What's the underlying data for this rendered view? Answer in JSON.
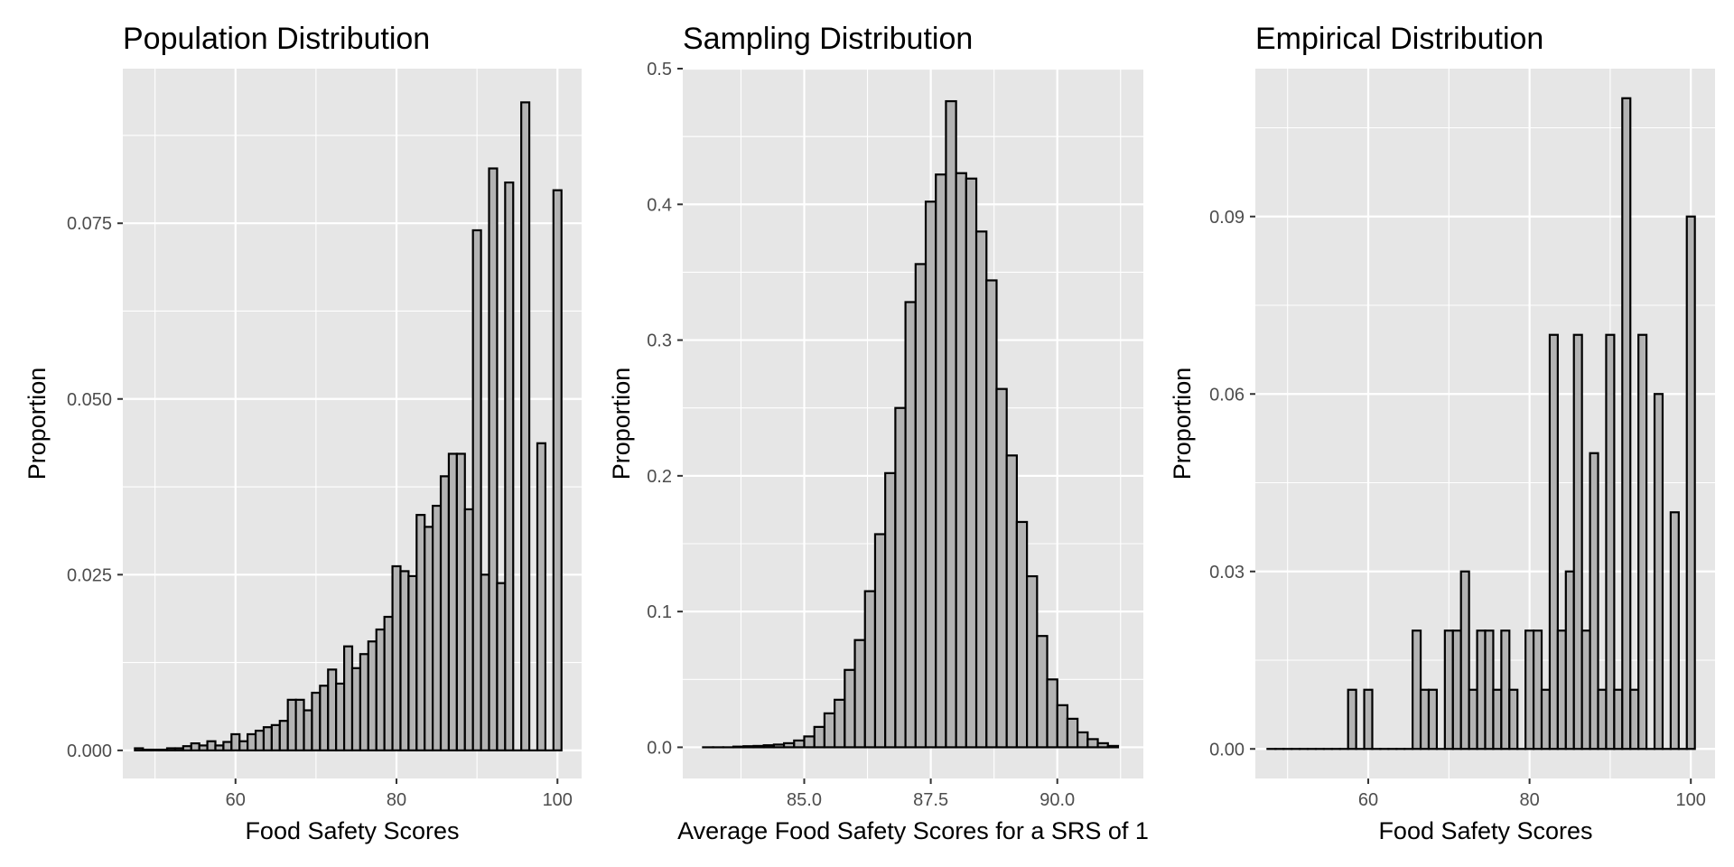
{
  "colors": {
    "panel_bg": "#e6e6e6",
    "grid": "#ffffff",
    "bar_fill": "#b3b3b3",
    "bar_outline": "#000000",
    "tick_text": "#4d4d4d"
  },
  "chart_data": [
    {
      "type": "bar",
      "title": "Population Distribution",
      "xlabel": "Food Safety Scores",
      "ylabel": "Proportion",
      "xlim": [
        46,
        103
      ],
      "ylim": [
        -0.004,
        0.097
      ],
      "bin_width": 1,
      "x_ticks": [
        60,
        80,
        100
      ],
      "y_ticks": [
        0.0,
        0.025,
        0.05,
        0.075
      ],
      "x_tick_labels": [
        "60",
        "80",
        "100"
      ],
      "y_tick_labels": [
        "0.000",
        "0.025",
        "0.050",
        "0.075"
      ],
      "grid": true,
      "x": [
        48,
        49,
        50,
        51,
        52,
        53,
        54,
        55,
        56,
        57,
        58,
        59,
        60,
        61,
        62,
        63,
        64,
        65,
        66,
        67,
        68,
        69,
        70,
        71,
        72,
        73,
        74,
        75,
        76,
        77,
        78,
        79,
        80,
        81,
        82,
        83,
        84,
        85,
        86,
        87,
        88,
        89,
        90,
        91,
        92,
        93,
        94,
        95,
        96,
        97,
        98,
        99,
        100
      ],
      "values": [
        0.0003,
        0.0001,
        0.0001,
        0.0001,
        0.0003,
        0.0003,
        0.0006,
        0.001,
        0.0007,
        0.0013,
        0.0007,
        0.0012,
        0.0023,
        0.0013,
        0.0023,
        0.0028,
        0.0033,
        0.0036,
        0.0042,
        0.0072,
        0.0072,
        0.0057,
        0.0082,
        0.0092,
        0.0115,
        0.0095,
        0.0148,
        0.0117,
        0.0137,
        0.0155,
        0.0172,
        0.019,
        0.0262,
        0.0255,
        0.0248,
        0.0335,
        0.0318,
        0.0348,
        0.039,
        0.0422,
        0.0422,
        0.0343,
        0.074,
        0.025,
        0.0828,
        0.0238,
        0.0808,
        0,
        0.0922,
        0,
        0.0437,
        0,
        0.0797
      ]
    },
    {
      "type": "bar",
      "title": "Sampling Distribution",
      "xlabel": "Average Food Safety Scores for a SRS of 1",
      "ylabel": "Proportion",
      "xlim": [
        82.6,
        91.7
      ],
      "ylim": [
        -0.023,
        0.5
      ],
      "bin_width": 0.2,
      "x_ticks": [
        85.0,
        87.5,
        90.0
      ],
      "y_ticks": [
        0.0,
        0.1,
        0.2,
        0.3,
        0.4,
        0.5
      ],
      "x_tick_labels": [
        "85.0",
        "87.5",
        "90.0"
      ],
      "y_tick_labels": [
        "0.0",
        "0.1",
        "0.2",
        "0.3",
        "0.4",
        "0.5"
      ],
      "grid": true,
      "x": [
        83.1,
        83.3,
        83.5,
        83.7,
        83.9,
        84.1,
        84.3,
        84.5,
        84.7,
        84.9,
        85.1,
        85.3,
        85.5,
        85.7,
        85.9,
        86.1,
        86.3,
        86.5,
        86.7,
        86.9,
        87.1,
        87.3,
        87.5,
        87.7,
        87.9,
        88.1,
        88.3,
        88.5,
        88.7,
        88.9,
        89.1,
        89.3,
        89.5,
        89.7,
        89.9,
        90.1,
        90.3,
        90.5,
        90.7,
        90.9,
        91.1
      ],
      "values": [
        0,
        0,
        0,
        0.0005,
        0.0008,
        0.001,
        0.0015,
        0.002,
        0.003,
        0.005,
        0.008,
        0.015,
        0.025,
        0.035,
        0.057,
        0.079,
        0.115,
        0.157,
        0.202,
        0.25,
        0.328,
        0.356,
        0.402,
        0.422,
        0.476,
        0.423,
        0.419,
        0.38,
        0.344,
        0.264,
        0.215,
        0.166,
        0.126,
        0.082,
        0.05,
        0.031,
        0.021,
        0.011,
        0.006,
        0.003,
        0.001
      ]
    },
    {
      "type": "bar",
      "title": "Empirical Distribution",
      "xlabel": "Food Safety Scores",
      "ylabel": "Proportion",
      "xlim": [
        46,
        103
      ],
      "ylim": [
        -0.005,
        0.115
      ],
      "bin_width": 1,
      "x_ticks": [
        60,
        80,
        100
      ],
      "y_ticks": [
        0.0,
        0.03,
        0.06,
        0.09
      ],
      "x_tick_labels": [
        "60",
        "80",
        "100"
      ],
      "y_tick_labels": [
        "0.00",
        "0.03",
        "0.06",
        "0.09"
      ],
      "grid": true,
      "x": [
        48,
        49,
        50,
        51,
        52,
        53,
        54,
        55,
        56,
        57,
        58,
        59,
        60,
        61,
        62,
        63,
        64,
        65,
        66,
        67,
        68,
        69,
        70,
        71,
        72,
        73,
        74,
        75,
        76,
        77,
        78,
        79,
        80,
        81,
        82,
        83,
        84,
        85,
        86,
        87,
        88,
        89,
        90,
        91,
        92,
        93,
        94,
        95,
        96,
        97,
        98,
        99,
        100
      ],
      "values": [
        0,
        0,
        0,
        0,
        0,
        0,
        0,
        0,
        0,
        0,
        0.01,
        0,
        0.01,
        0,
        0,
        0,
        0,
        0,
        0.02,
        0.01,
        0.01,
        0,
        0.02,
        0.02,
        0.03,
        0.01,
        0.02,
        0.02,
        0.01,
        0.02,
        0.01,
        0,
        0.02,
        0.02,
        0.01,
        0.07,
        0.02,
        0.03,
        0.07,
        0.02,
        0.05,
        0.01,
        0.07,
        0.01,
        0.11,
        0.01,
        0.07,
        0,
        0.06,
        0,
        0.04,
        0,
        0.09
      ]
    }
  ]
}
